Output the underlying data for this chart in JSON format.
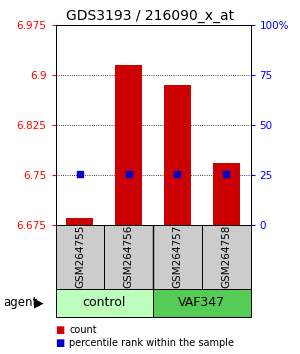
{
  "title": "GDS3193 / 216090_x_at",
  "samples": [
    "GSM264755",
    "GSM264756",
    "GSM264757",
    "GSM264758"
  ],
  "bar_values": [
    6.685,
    6.915,
    6.885,
    6.768
  ],
  "bar_bottom": 6.675,
  "dot_values": [
    6.751,
    6.751,
    6.751,
    6.751
  ],
  "bar_color": "#cc0000",
  "dot_color": "#0000cc",
  "ylim_left": [
    6.675,
    6.975
  ],
  "yticks_left": [
    6.675,
    6.75,
    6.825,
    6.9,
    6.975
  ],
  "ytick_left_labels": [
    "6.675",
    "6.75",
    "6.825",
    "6.9",
    "6.975"
  ],
  "yticks_right_vals": [
    6.675,
    6.75,
    6.825,
    6.9,
    6.975
  ],
  "yticks_right": [
    0,
    25,
    50,
    75,
    100
  ],
  "ytick_right_labels": [
    "0",
    "25",
    "50",
    "75",
    "100%"
  ],
  "groups": [
    {
      "label": "control",
      "samples": [
        0,
        1
      ],
      "color": "#bbffbb"
    },
    {
      "label": "VAF347",
      "samples": [
        2,
        3
      ],
      "color": "#55cc55"
    }
  ],
  "agent_label": "agent",
  "legend_items": [
    {
      "label": "count",
      "color": "#cc0000"
    },
    {
      "label": "percentile rank within the sample",
      "color": "#0000cc"
    }
  ],
  "bar_width": 0.55,
  "title_fontsize": 10,
  "tick_fontsize": 7.5,
  "sample_label_fontsize": 7.5
}
